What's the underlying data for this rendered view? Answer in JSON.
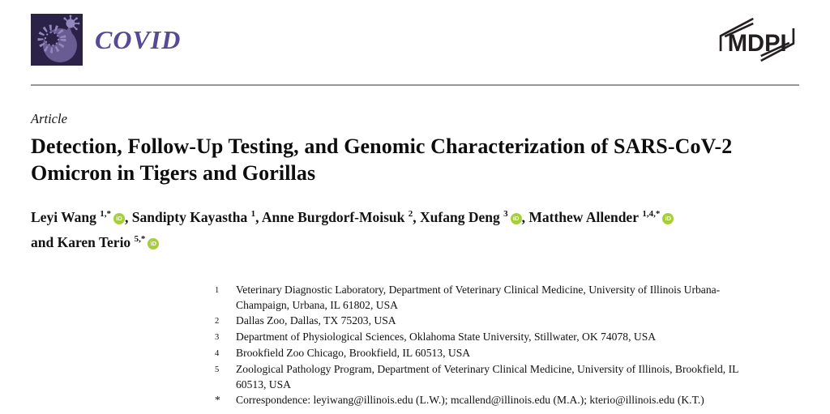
{
  "journal": {
    "name": "COVID",
    "publisher_logo_text": "MDPI"
  },
  "article": {
    "type_label": "Article",
    "title": "Detection, Follow-Up Testing, and Genomic Characterization of SARS-CoV-2 Omicron in Tigers and Gorillas"
  },
  "authors": [
    {
      "name": "Leyi Wang",
      "sup": "1,*",
      "orcid": true
    },
    {
      "name": "Sandipty Kayastha",
      "sup": "1",
      "orcid": false
    },
    {
      "name": "Anne Burgdorf-Moisuk",
      "sup": "2",
      "orcid": false
    },
    {
      "name": "Xufang Deng",
      "sup": "3",
      "orcid": true
    },
    {
      "name": "Matthew Allender",
      "sup": "1,4,*",
      "orcid": true
    },
    {
      "name": "Karen Terio",
      "sup": "5,*",
      "orcid": true
    }
  ],
  "authors_final_joiner": "and",
  "orcid_icon_label": "iD",
  "affiliations": [
    {
      "marker": "1",
      "text": "Veterinary Diagnostic Laboratory, Department of Veterinary Clinical Medicine, University of Illinois Urbana-Champaign, Urbana, IL 61802, USA"
    },
    {
      "marker": "2",
      "text": "Dallas Zoo, Dallas, TX 75203, USA"
    },
    {
      "marker": "3",
      "text": "Department of Physiological Sciences, Oklahoma State University, Stillwater, OK 74078, USA"
    },
    {
      "marker": "4",
      "text": "Brookfield Zoo Chicago, Brookfield, IL 60513, USA"
    },
    {
      "marker": "5",
      "text": "Zoological Pathology Program, Department of Veterinary Clinical Medicine, University of Illinois, Brookfield, IL 60513, USA"
    },
    {
      "marker": "*",
      "text": "Correspondence: leyiwang@illinois.edu (L.W.); mcallend@illinois.edu (M.A.); kterio@illinois.edu (K.T.)"
    }
  ],
  "colors": {
    "journal_accent": "#564a94",
    "logo_background": "#2b2347",
    "virus_solid": "#685c93",
    "virus_light": "#9288bc",
    "orcid_green": "#a6ce39",
    "rule_gray": "#98989a"
  }
}
